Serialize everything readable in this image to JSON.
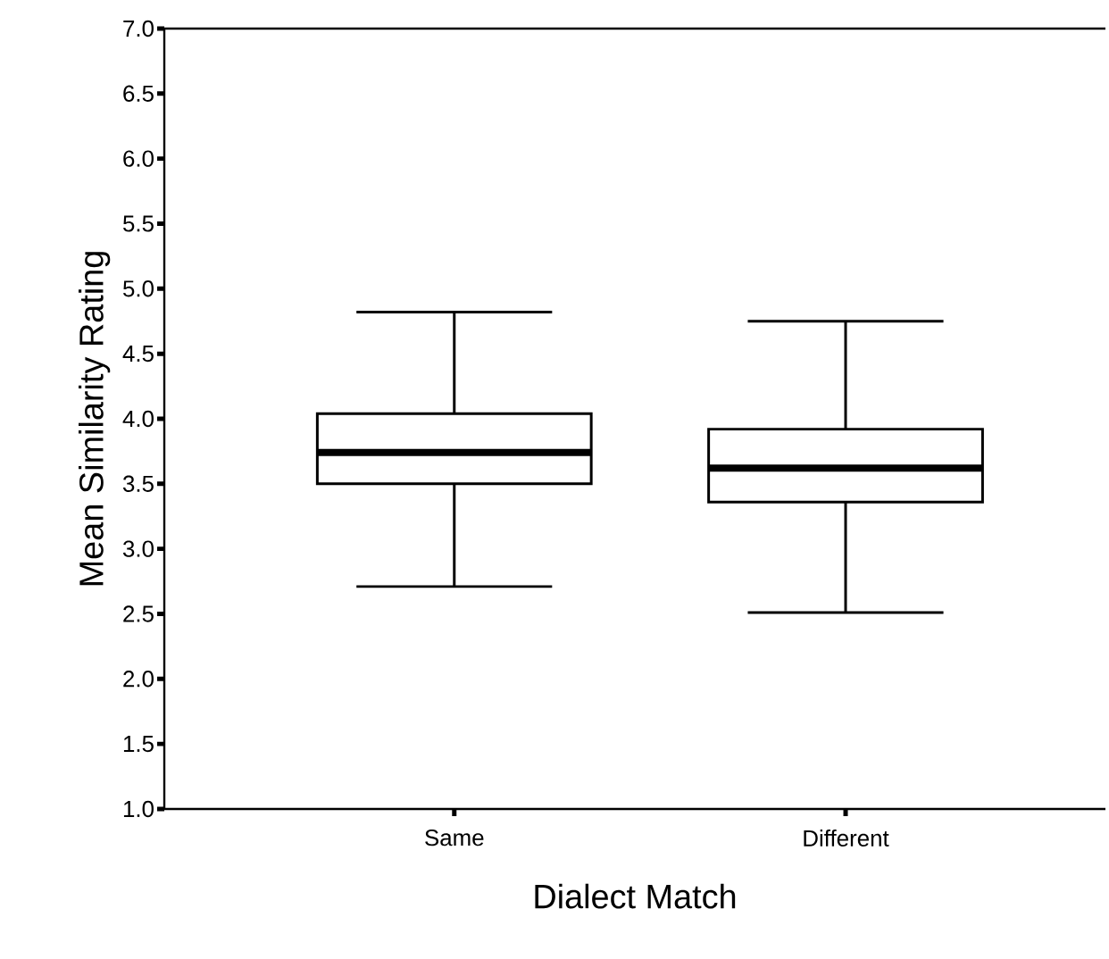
{
  "chart_data": {
    "type": "box",
    "xlabel": "Dialect Match",
    "ylabel": "Mean Similarity Rating",
    "categories": [
      "Same",
      "Different"
    ],
    "boxes": [
      {
        "low": 2.71,
        "q1": 3.5,
        "median": 3.74,
        "q3": 4.04,
        "high": 4.82
      },
      {
        "low": 2.51,
        "q1": 3.36,
        "median": 3.62,
        "q3": 3.92,
        "high": 4.75
      }
    ],
    "color": "#000000",
    "ylim": [
      1,
      7
    ],
    "yticks": [
      {
        "value": 1,
        "label": "1.0"
      },
      {
        "value": 1.5,
        "label": "1.5"
      },
      {
        "value": 2,
        "label": "2.0"
      },
      {
        "value": 2.5,
        "label": "2.5"
      },
      {
        "value": 3,
        "label": "3.0"
      },
      {
        "value": 3.5,
        "label": "3.5"
      },
      {
        "value": 4,
        "label": "4.0"
      },
      {
        "value": 4.5,
        "label": "4.5"
      },
      {
        "value": 5,
        "label": "5.0"
      },
      {
        "value": 5.5,
        "label": "5.5"
      },
      {
        "value": 6,
        "label": "6.0"
      },
      {
        "value": 6.5,
        "label": "6.5"
      },
      {
        "value": 7,
        "label": "7.0"
      }
    ]
  }
}
